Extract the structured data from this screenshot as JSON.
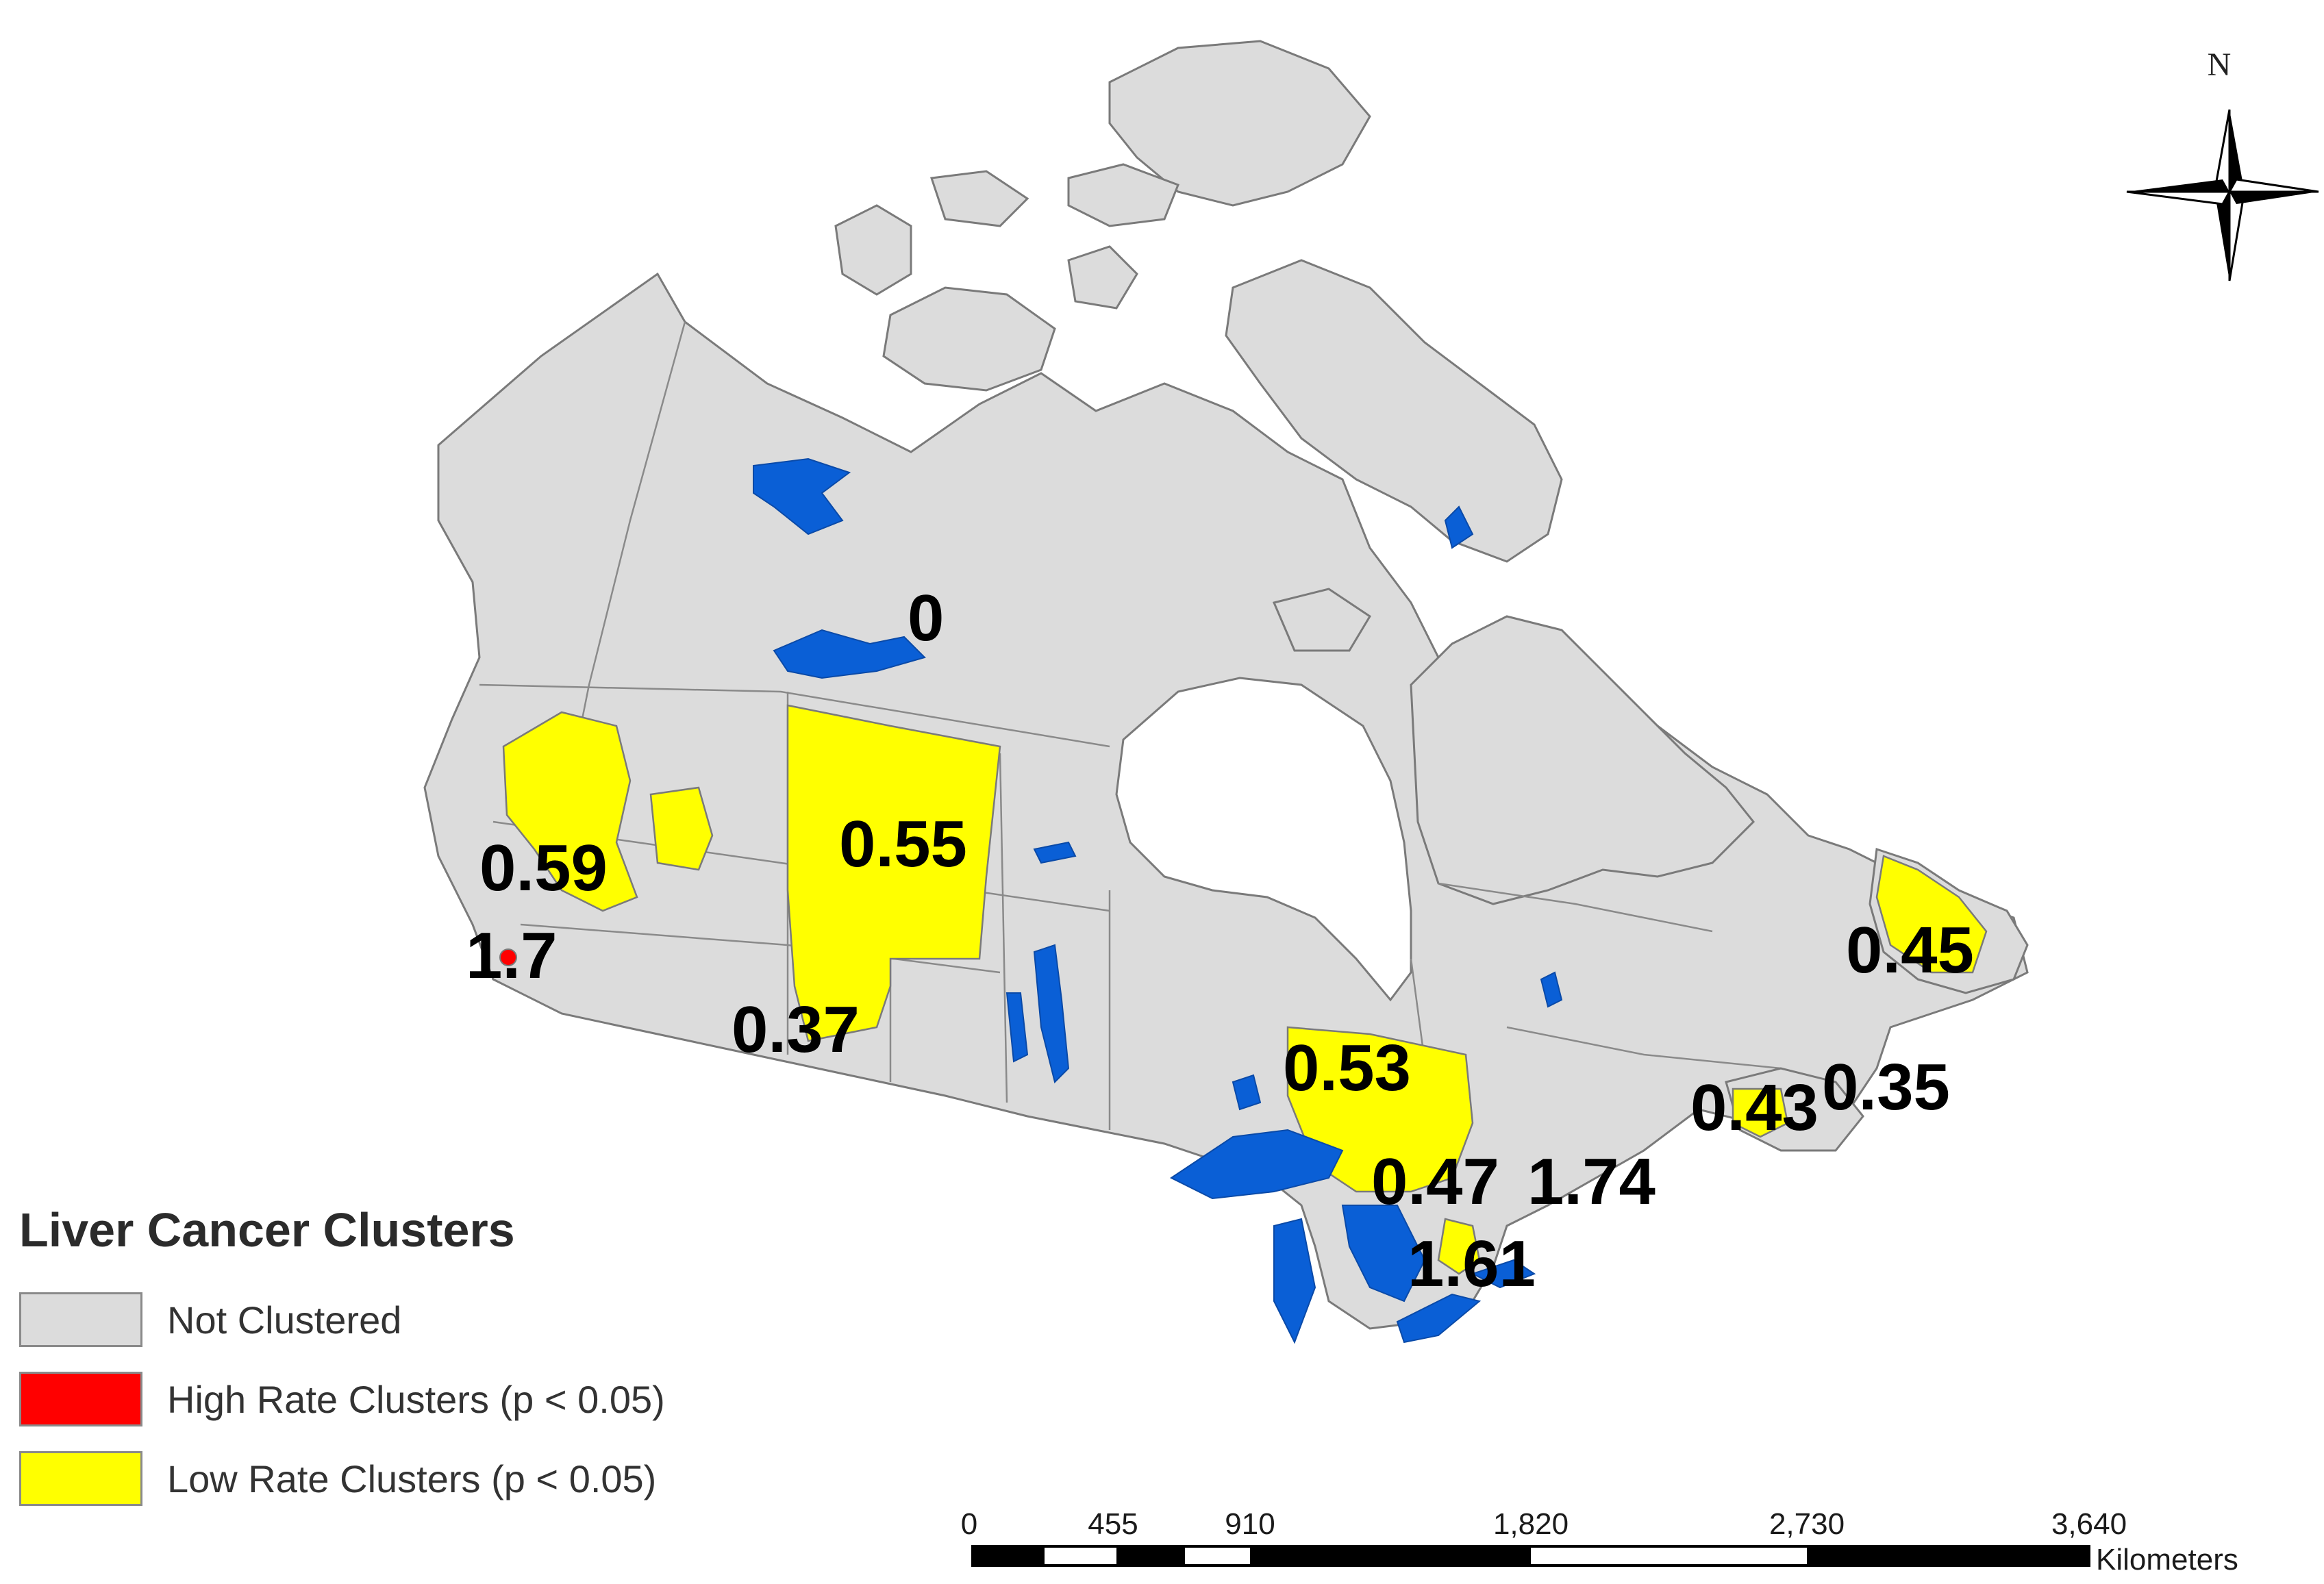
{
  "map": {
    "cluster_values": {
      "north": "0",
      "bc_north": "0.59",
      "bc_south_high": "1.7",
      "alberta_north": "0.55",
      "alberta_south": "0.37",
      "ontario_north": "0.53",
      "ontario_east": "0.47",
      "ottawa_area": "1.74",
      "ontario_south": "1.61",
      "maritimes": "0.43",
      "nova_scotia": "0.35",
      "newfoundland": "0.45"
    },
    "colors": {
      "not_clustered": "#dcdcdc",
      "high_rate": "#ff0000",
      "low_rate": "#ffff00",
      "water": "#0a5fd6"
    }
  },
  "legend": {
    "title": "Liver Cancer Clusters",
    "items": [
      {
        "label": "Not Clustered",
        "color": "#dcdcdc"
      },
      {
        "label": "High Rate Clusters (p < 0.05)",
        "color": "#ff0000"
      },
      {
        "label": "Low Rate Clusters (p < 0.05)",
        "color": "#ffff00"
      }
    ]
  },
  "north_arrow": {
    "label": "N"
  },
  "scale_bar": {
    "ticks": [
      "0",
      "455",
      "910",
      "1,820",
      "2,730",
      "3,640"
    ],
    "unit": "Kilometers"
  }
}
